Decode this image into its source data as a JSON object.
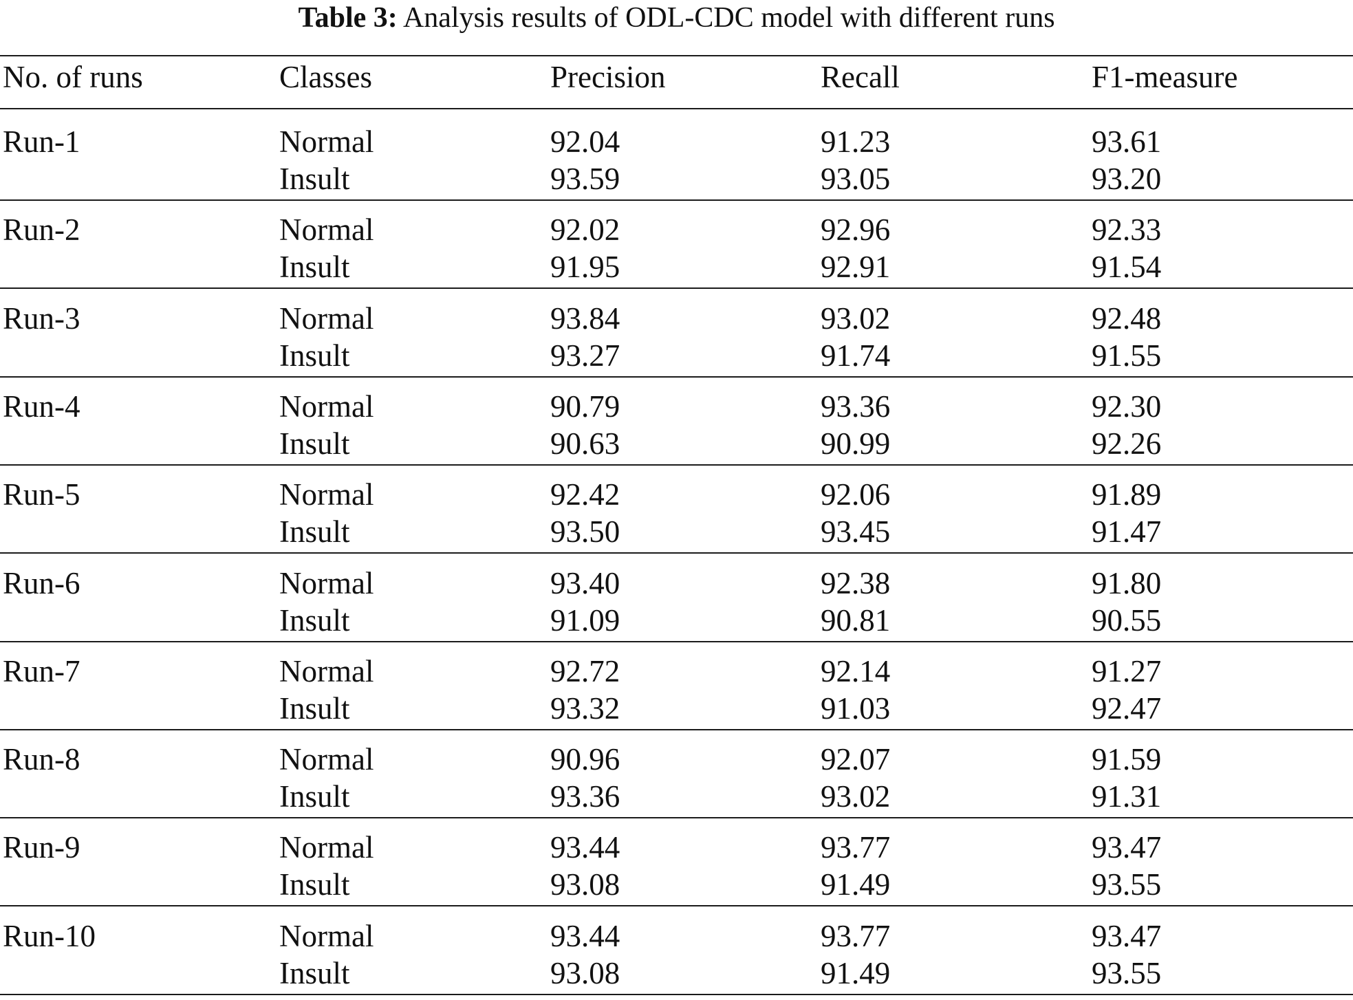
{
  "caption": {
    "label": "Table 3:",
    "text": "Analysis results of ODL-CDC model with different runs"
  },
  "table": {
    "headers": [
      "No. of runs",
      "Classes",
      "Precision",
      "Recall",
      "F1-measure"
    ],
    "groups": [
      {
        "run": "Run-1",
        "rows": [
          {
            "class": "Normal",
            "precision": "92.04",
            "recall": "91.23",
            "f1": "93.61"
          },
          {
            "class": "Insult",
            "precision": "93.59",
            "recall": "93.05",
            "f1": "93.20"
          }
        ]
      },
      {
        "run": "Run-2",
        "rows": [
          {
            "class": "Normal",
            "precision": "92.02",
            "recall": "92.96",
            "f1": "92.33"
          },
          {
            "class": "Insult",
            "precision": "91.95",
            "recall": "92.91",
            "f1": "91.54"
          }
        ]
      },
      {
        "run": "Run-3",
        "rows": [
          {
            "class": "Normal",
            "precision": "93.84",
            "recall": "93.02",
            "f1": "92.48"
          },
          {
            "class": "Insult",
            "precision": "93.27",
            "recall": "91.74",
            "f1": "91.55"
          }
        ]
      },
      {
        "run": "Run-4",
        "rows": [
          {
            "class": "Normal",
            "precision": "90.79",
            "recall": "93.36",
            "f1": "92.30"
          },
          {
            "class": "Insult",
            "precision": "90.63",
            "recall": "90.99",
            "f1": "92.26"
          }
        ]
      },
      {
        "run": "Run-5",
        "rows": [
          {
            "class": "Normal",
            "precision": "92.42",
            "recall": "92.06",
            "f1": "91.89"
          },
          {
            "class": "Insult",
            "precision": "93.50",
            "recall": "93.45",
            "f1": "91.47"
          }
        ]
      },
      {
        "run": "Run-6",
        "rows": [
          {
            "class": "Normal",
            "precision": "93.40",
            "recall": "92.38",
            "f1": "91.80"
          },
          {
            "class": "Insult",
            "precision": "91.09",
            "recall": "90.81",
            "f1": "90.55"
          }
        ]
      },
      {
        "run": "Run-7",
        "rows": [
          {
            "class": "Normal",
            "precision": "92.72",
            "recall": "92.14",
            "f1": "91.27"
          },
          {
            "class": "Insult",
            "precision": "93.32",
            "recall": "91.03",
            "f1": "92.47"
          }
        ]
      },
      {
        "run": "Run-8",
        "rows": [
          {
            "class": "Normal",
            "precision": "90.96",
            "recall": "92.07",
            "f1": "91.59"
          },
          {
            "class": "Insult",
            "precision": "93.36",
            "recall": "93.02",
            "f1": "91.31"
          }
        ]
      },
      {
        "run": "Run-9",
        "rows": [
          {
            "class": "Normal",
            "precision": "93.44",
            "recall": "93.77",
            "f1": "93.47"
          },
          {
            "class": "Insult",
            "precision": "93.08",
            "recall": "91.49",
            "f1": "93.55"
          }
        ]
      },
      {
        "run": "Run-10",
        "rows": [
          {
            "class": "Normal",
            "precision": "93.44",
            "recall": "93.77",
            "f1": "93.47"
          },
          {
            "class": "Insult",
            "precision": "93.08",
            "recall": "91.49",
            "f1": "93.55"
          }
        ]
      }
    ]
  }
}
